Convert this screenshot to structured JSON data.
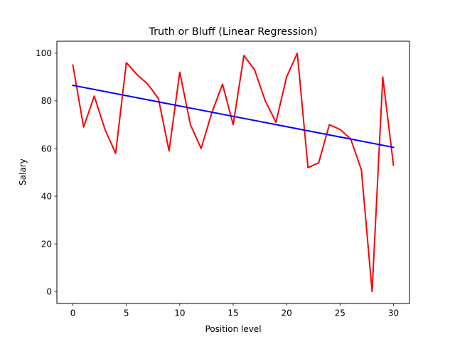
{
  "chart_data": {
    "type": "line",
    "title": "Truth or Bluff (Linear Regression)",
    "xlabel": "Position level",
    "ylabel": "Salary",
    "xlim": [
      -1.5,
      31.5
    ],
    "ylim": [
      -5,
      105
    ],
    "xticks": [
      0,
      5,
      10,
      15,
      20,
      25,
      30
    ],
    "yticks": [
      0,
      20,
      40,
      60,
      80,
      100
    ],
    "grid": false,
    "legend": "none",
    "series": [
      {
        "kind": "data",
        "color": "#ff0000",
        "x": [
          0,
          1,
          2,
          3,
          4,
          5,
          6,
          7,
          8,
          9,
          10,
          11,
          12,
          13,
          14,
          15,
          16,
          17,
          18,
          19,
          20,
          21,
          22,
          23,
          24,
          25,
          26,
          27,
          28,
          29,
          30
        ],
        "y": [
          95,
          69,
          82,
          68,
          58,
          96,
          91,
          87,
          81,
          59,
          92,
          70,
          60,
          75,
          87,
          70,
          99,
          93,
          80,
          71,
          90,
          100,
          52,
          54,
          70,
          68,
          64,
          51,
          0,
          90,
          53
        ]
      },
      {
        "kind": "regression",
        "color": "#0000ff",
        "x": [
          0,
          30
        ],
        "y": [
          86.5,
          60.5
        ]
      }
    ]
  }
}
